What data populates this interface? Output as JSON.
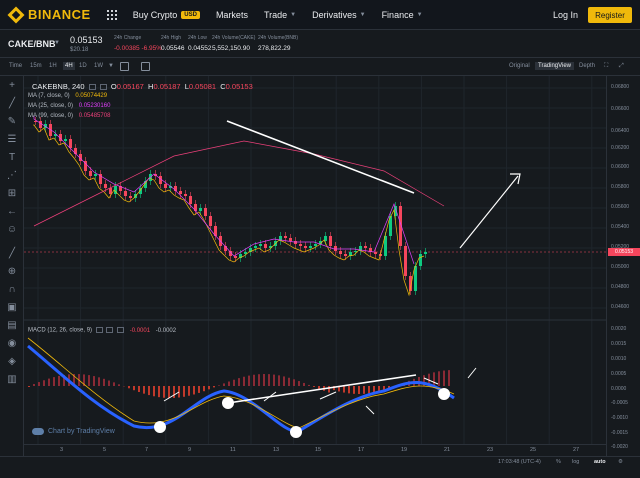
{
  "nav": {
    "logo": "BINANCE",
    "buy_crypto": "Buy Crypto",
    "usd_badge": "USD",
    "markets": "Markets",
    "trade": "Trade",
    "derivatives": "Derivatives",
    "finance": "Finance",
    "login": "Log In",
    "register": "Register"
  },
  "ticker": {
    "pair": "CAKE/BNB",
    "last_price": "0.05153",
    "usd_price": "$20.18",
    "change_label": "24h Change",
    "change_value": "-0.00385 -6.95%",
    "high_label": "24h High",
    "high_value": "0.05546",
    "low_label": "24h Low",
    "low_value": "0.04552",
    "volcake_label": "24h Volume(CAKE)",
    "volcake_value": "5,552,150.90",
    "volbnb_label": "24h Volume(BNB)",
    "volbnb_value": "278,822.29"
  },
  "toolbar": {
    "time": "Time",
    "intervals": [
      "15m",
      "1H",
      "4H",
      "1D",
      "1W"
    ],
    "active_interval": "4H",
    "views": [
      "Original",
      "TradingView",
      "Depth"
    ],
    "active_view": "TradingView"
  },
  "legend": {
    "symbol": "CAKEBNB, 240",
    "o_label": "O",
    "o": "0.05167",
    "h_label": "H",
    "h": "0.05187",
    "l_label": "L",
    "l": "0.05081",
    "c_label": "C",
    "c": "0.05153",
    "ma7": "MA (7, close, 0)",
    "ma7_val": "0.05074429",
    "ma7_color": "#f0b90b",
    "ma25": "MA (25, close, 0)",
    "ma25_val": "0.05230160",
    "ma25_color": "#e040fb",
    "ma99": "MA (99, close, 0)",
    "ma99_val": "0.05485708",
    "ma99_color": "#ec407a",
    "macd": "MACD (12, 26, close, 9)",
    "macd_val1": "-0.0001",
    "macd_val2": "-0.0002"
  },
  "price_axis": [
    "0.06800",
    "0.06600",
    "0.06400",
    "0.06200",
    "0.06000",
    "0.05800",
    "0.05600",
    "0.05400",
    "0.05200",
    "0.05000",
    "0.04800",
    "0.04600"
  ],
  "price_marker": "0.05153",
  "macd_axis": [
    "0.0020",
    "0.0015",
    "0.0010",
    "0.0005",
    "0.0000",
    "-0.0005",
    "-0.0010",
    "-0.0015",
    "-0.0020"
  ],
  "time_axis": [
    "3",
    "5",
    "7",
    "9",
    "11",
    "13",
    "15",
    "17",
    "19",
    "21",
    "23",
    "25",
    "27"
  ],
  "tv_logo": "Chart by TradingView",
  "bottom": {
    "clock": "17:03:48 (UTC-4)",
    "pct": "%",
    "log": "log",
    "auto": "auto"
  },
  "colors": {
    "accent": "#f0b90b",
    "up": "#0ecb81",
    "down": "#f6465d",
    "macd_line": "#2962ff",
    "signal_line": "#f0b90b"
  }
}
